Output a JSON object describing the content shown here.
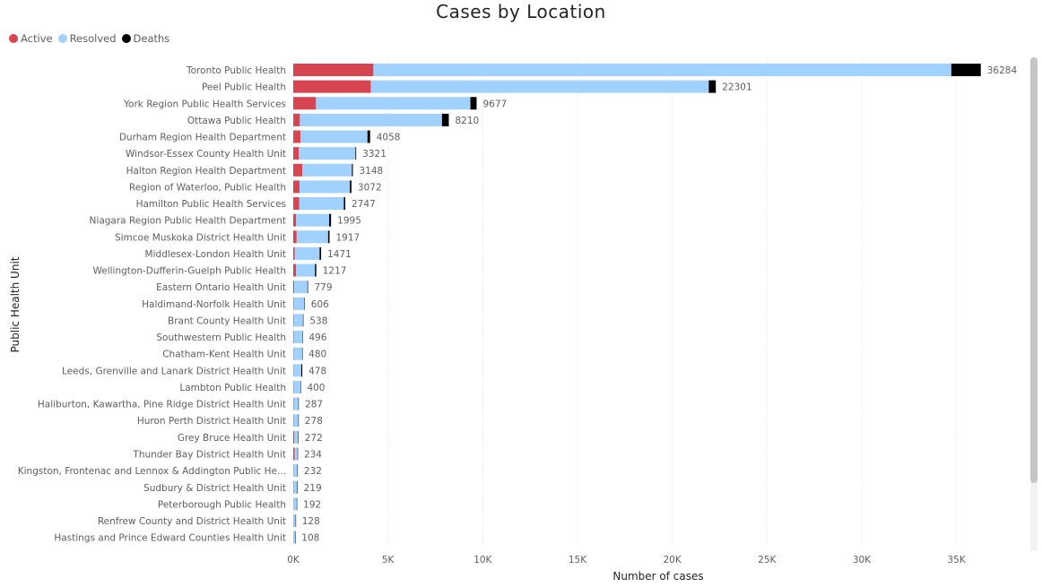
{
  "chart_data": {
    "type": "bar",
    "orientation": "horizontal",
    "stacked": true,
    "title": "Cases by Location",
    "xlabel": "Number of cases",
    "ylabel": "Public Health Unit",
    "xlim": [
      0,
      38000
    ],
    "x_ticks": [
      0,
      5000,
      10000,
      15000,
      20000,
      25000,
      30000,
      35000
    ],
    "x_tick_labels": [
      "0K",
      "5K",
      "10K",
      "15K",
      "20K",
      "25K",
      "30K",
      "35K"
    ],
    "grid": "vertical dotted",
    "legend_position": "top-left",
    "categories": [
      "Toronto Public Health",
      "Peel Public Health",
      "York Region Public Health Services",
      "Ottawa Public Health",
      "Durham Region Health Department",
      "Windsor-Essex County Health Unit",
      "Halton Region Health Department",
      "Region of Waterloo, Public Health",
      "Hamilton Public Health Services",
      "Niagara Region Public Health Department",
      "Simcoe Muskoka District Health Unit",
      "Middlesex-London Health Unit",
      "Wellington-Dufferin-Guelph Public Health",
      "Eastern Ontario Health Unit",
      "Haldimand-Norfolk Health Unit",
      "Brant County Health Unit",
      "Southwestern Public Health",
      "Chatham-Kent Health Unit",
      "Leeds, Grenville and Lanark District Health Unit",
      "Lambton Public Health",
      "Haliburton, Kawartha, Pine Ridge District Health Unit",
      "Huron Perth District Health Unit",
      "Grey Bruce Health Unit",
      "Thunder Bay District Health Unit",
      "Kingston, Frontenac and Lennox & Addington Public He...",
      "Sudbury & District Health Unit",
      "Peterborough Public Health",
      "Renfrew County and District Health Unit",
      "Hastings and Prince Edward Counties Health Unit"
    ],
    "series": [
      {
        "name": "Active",
        "color": "#d64550",
        "values": [
          4230,
          4100,
          1200,
          350,
          380,
          300,
          480,
          330,
          320,
          150,
          180,
          80,
          150,
          50,
          20,
          30,
          30,
          10,
          10,
          15,
          20,
          15,
          60,
          80,
          10,
          15,
          10,
          5,
          5
        ]
      },
      {
        "name": "Resolved",
        "color": "#a0d1ff",
        "values": [
          30500,
          17830,
          8150,
          7500,
          3538,
          2981,
          2616,
          2662,
          2352,
          1745,
          1659,
          1311,
          997,
          699,
          561,
          483,
          443,
          460,
          413,
          370,
          249,
          253,
          194,
          147,
          209,
          196,
          172,
          120,
          98
        ]
      },
      {
        "name": "Deaths",
        "color": "#000000",
        "values": [
          1554,
          371,
          327,
          360,
          140,
          40,
          52,
          80,
          75,
          100,
          78,
          80,
          70,
          30,
          25,
          25,
          23,
          10,
          55,
          15,
          18,
          10,
          18,
          7,
          13,
          8,
          10,
          3,
          5
        ]
      }
    ],
    "totals": [
      36284,
      22301,
      9677,
      8210,
      4058,
      3321,
      3148,
      3072,
      2747,
      1995,
      1917,
      1471,
      1217,
      779,
      606,
      538,
      496,
      480,
      478,
      400,
      287,
      278,
      272,
      234,
      232,
      219,
      192,
      128,
      108
    ]
  }
}
